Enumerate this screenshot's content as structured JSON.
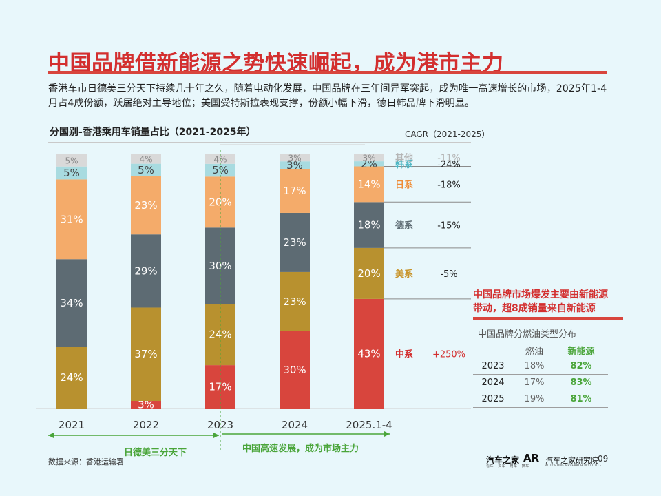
{
  "title": "中国品牌借新能源之势快速崛起，成为港市主力",
  "description": "香港车市日德美三分天下持续几十年之久，随着电动化发展，中国品牌在三年间异军突起，成为唯一高速增长的市场，2025年1-4月占4成份额，跃居绝对主导地位；美国受特斯拉表现支撑，份额小幅下滑，德日韩品牌下滑明显。",
  "chart_title": "分国别-香港乘用车销量占比（2021-2025年）",
  "cagr_header": "CAGR（2021-2025）",
  "chart_data": {
    "type": "bar",
    "stacked": true,
    "categories": [
      "2021",
      "2022",
      "2023",
      "2024",
      "2025.1-4"
    ],
    "series": [
      {
        "name": "中系",
        "values": [
          0,
          3,
          17,
          30,
          43
        ],
        "labels": [
          "0%",
          "3%",
          "17%",
          "30%",
          "43%"
        ],
        "color": "#d8453d",
        "cagr": "+250%",
        "text_color": "#d32f2f",
        "cagr_color": "#d32f2f"
      },
      {
        "name": "美系",
        "values": [
          24,
          37,
          24,
          23,
          20
        ],
        "labels": [
          "24%",
          "37%",
          "24%",
          "23%",
          "20%"
        ],
        "color": "#b8912f",
        "cagr": "-5%",
        "text_color": "#c8942a",
        "cagr_color": "#222222"
      },
      {
        "name": "德系",
        "values": [
          34,
          29,
          30,
          23,
          18
        ],
        "labels": [
          "34%",
          "29%",
          "30%",
          "23%",
          "18%"
        ],
        "color": "#5d6b73",
        "cagr": "-15%",
        "text_color": "#5d6b73",
        "cagr_color": "#222222"
      },
      {
        "name": "日系",
        "values": [
          31,
          23,
          20,
          17,
          14
        ],
        "labels": [
          "31%",
          "23%",
          "20%",
          "17%",
          "14%"
        ],
        "color": "#f4ab6a",
        "cagr": "-18%",
        "text_color": "#ef8c35",
        "cagr_color": "#222222"
      },
      {
        "name": "韩系",
        "values": [
          5,
          5,
          5,
          3,
          2
        ],
        "labels": [
          "5%",
          "5%",
          "5%",
          "3%",
          "2%"
        ],
        "color": "#a8dbe0",
        "cagr": "-24%",
        "text_color": "#4fb7c4",
        "cagr_color": "#222222"
      },
      {
        "name": "其他",
        "values": [
          5,
          4,
          4,
          3,
          3
        ],
        "labels": [
          "5%",
          "4%",
          "4%",
          "3%",
          "3%"
        ],
        "color": "#d9d9d9",
        "cagr": "-11%",
        "text_color": "#b5b5b5",
        "cagr_color": "#b5b5b5"
      }
    ],
    "ylim": [
      0,
      100
    ],
    "legend": "right"
  },
  "periods": [
    {
      "label": "日德美三分天下",
      "color": "#4aa53a"
    },
    {
      "label": "中国高速发展，成为市场主力",
      "color": "#4aa53a"
    }
  ],
  "callout": {
    "line1": "中国品牌市场爆发主要由新能源",
    "line2": "带动，超8成销量来自新能源"
  },
  "fuel_table": {
    "title": "中国品牌分燃油类型分布",
    "headers": [
      "",
      "燃油",
      "新能源"
    ],
    "rows": [
      {
        "year": "2023",
        "fuel": "18%",
        "nev": "82%"
      },
      {
        "year": "2024",
        "fuel": "17%",
        "nev": "83%"
      },
      {
        "year": "2025",
        "fuel": "19%",
        "nev": "81%"
      }
    ]
  },
  "source": "数据来源：香港运输署",
  "logo": {
    "brand": "汽车之家",
    "brand_sub": "看车 · 买车 · 用车 · 换车",
    "institute_mark": "AR",
    "institute": "汽车之家研究院",
    "institute_sub": "AUTOHOME RESEARCH INSTITUTE"
  },
  "page_number": "09"
}
